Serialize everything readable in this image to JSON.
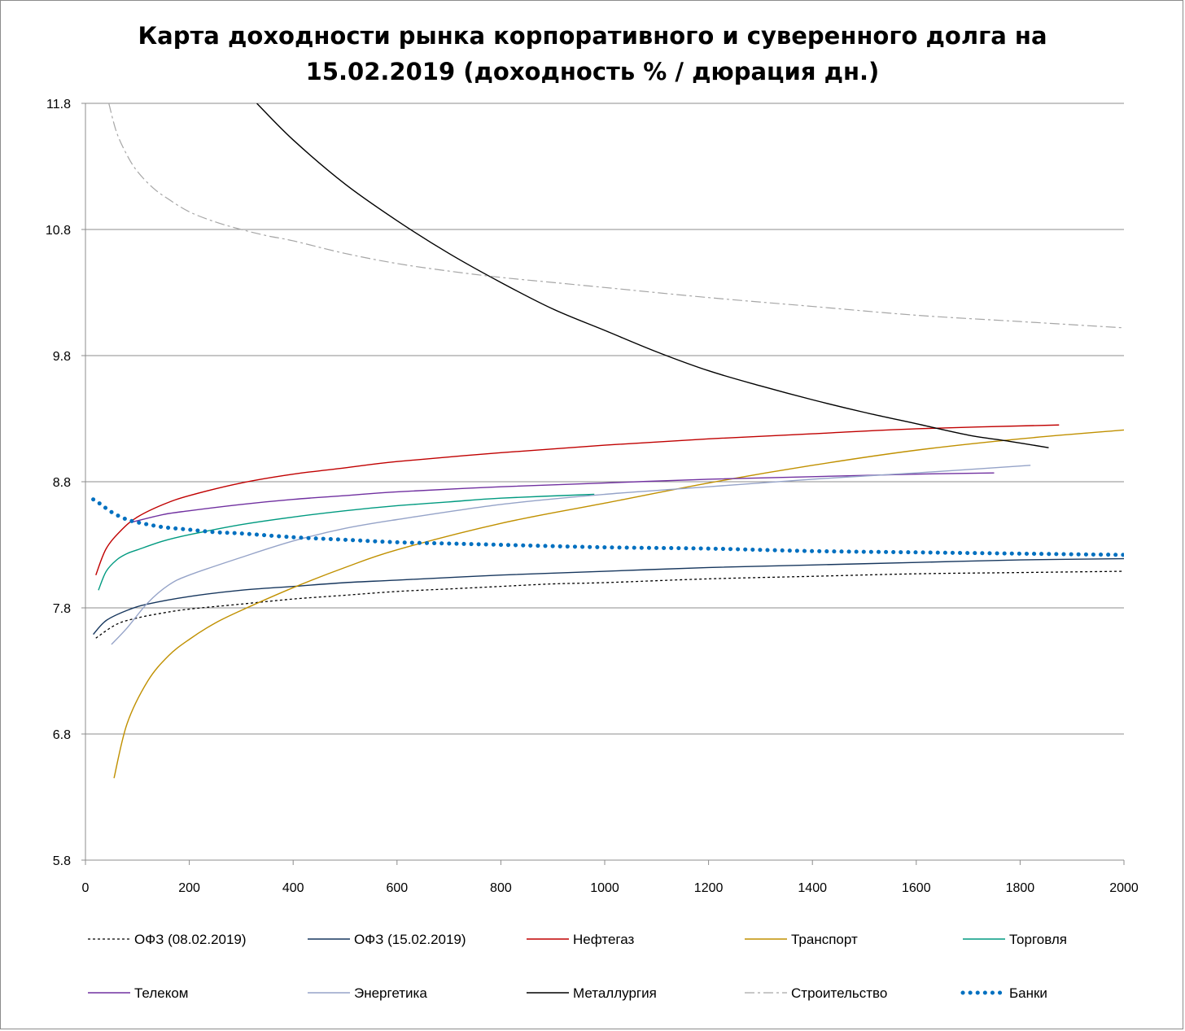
{
  "chart_data": {
    "type": "line",
    "title": "Карта доходности рынка корпоративного и суверенного долга на\n15.02.2019 (доходность % / дюрация дн.)",
    "xlabel": "",
    "ylabel": "",
    "xlim": [
      0,
      2000
    ],
    "ylim": [
      5.8,
      11.8
    ],
    "xticks": [
      "0",
      "200",
      "400",
      "600",
      "800",
      "1000",
      "1200",
      "1400",
      "1600",
      "1800",
      "2000"
    ],
    "yticks": [
      "11.8",
      "10.8",
      "9.8",
      "8.8",
      "7.8",
      "6.8",
      "5.8"
    ],
    "grid": "horizontal",
    "legend_position": "bottom",
    "series": [
      {
        "name": "ОФЗ (08.02.2019)",
        "color": "#000000",
        "style": "dash-fine",
        "x": [
          20,
          60,
          100,
          150,
          200,
          300,
          400,
          500,
          600,
          700,
          800,
          900,
          1000,
          1200,
          1400,
          1600,
          1800,
          2000
        ],
        "y": [
          7.56,
          7.67,
          7.72,
          7.76,
          7.79,
          7.83,
          7.87,
          7.9,
          7.93,
          7.95,
          7.97,
          7.99,
          8.0,
          8.03,
          8.05,
          8.07,
          8.08,
          8.09
        ]
      },
      {
        "name": "ОФЗ (15.02.2019)",
        "color": "#17375e",
        "style": "solid",
        "x": [
          15,
          40,
          80,
          120,
          200,
          300,
          400,
          500,
          600,
          800,
          1000,
          1200,
          1400,
          1600,
          1800,
          2000
        ],
        "y": [
          7.59,
          7.7,
          7.78,
          7.83,
          7.89,
          7.94,
          7.97,
          8.0,
          8.02,
          8.06,
          8.09,
          8.12,
          8.14,
          8.16,
          8.18,
          8.19
        ]
      },
      {
        "name": "Нефтегаз",
        "color": "#c00000",
        "style": "solid",
        "x": [
          20,
          40,
          70,
          100,
          150,
          200,
          300,
          400,
          500,
          600,
          800,
          1000,
          1200,
          1400,
          1600,
          1875
        ],
        "y": [
          8.06,
          8.27,
          8.42,
          8.52,
          8.62,
          8.69,
          8.79,
          8.86,
          8.91,
          8.96,
          9.03,
          9.09,
          9.14,
          9.18,
          9.22,
          9.25
        ]
      },
      {
        "name": "Транспорт",
        "color": "#c09000",
        "style": "solid",
        "x": [
          55,
          80,
          120,
          160,
          200,
          250,
          300,
          400,
          500,
          600,
          800,
          1000,
          1200,
          1400,
          1600,
          1800,
          2000
        ],
        "y": [
          6.45,
          6.88,
          7.22,
          7.42,
          7.55,
          7.68,
          7.78,
          7.96,
          8.12,
          8.26,
          8.47,
          8.63,
          8.79,
          8.93,
          9.05,
          9.14,
          9.21
        ]
      },
      {
        "name": "Торговля",
        "color": "#009a80",
        "style": "solid",
        "x": [
          25,
          40,
          60,
          80,
          100,
          150,
          200,
          300,
          400,
          500,
          600,
          700,
          800,
          980
        ],
        "y": [
          7.94,
          8.09,
          8.18,
          8.23,
          8.26,
          8.33,
          8.38,
          8.46,
          8.52,
          8.57,
          8.61,
          8.64,
          8.67,
          8.7
        ]
      },
      {
        "name": "Телеком",
        "color": "#7030a0",
        "style": "solid",
        "x": [
          90,
          150,
          200,
          300,
          400,
          500,
          600,
          800,
          1000,
          1200,
          1400,
          1600,
          1750
        ],
        "y": [
          8.48,
          8.54,
          8.57,
          8.62,
          8.66,
          8.69,
          8.72,
          8.76,
          8.79,
          8.82,
          8.84,
          8.86,
          8.87
        ]
      },
      {
        "name": "Энергетика",
        "color": "#95a3c8",
        "style": "solid",
        "x": [
          50,
          80,
          120,
          160,
          200,
          300,
          400,
          500,
          600,
          800,
          1000,
          1200,
          1400,
          1600,
          1820
        ],
        "y": [
          7.51,
          7.64,
          7.84,
          7.98,
          8.06,
          8.2,
          8.33,
          8.43,
          8.5,
          8.62,
          8.7,
          8.76,
          8.82,
          8.87,
          8.93
        ]
      },
      {
        "name": "Металлургия",
        "color": "#000000",
        "style": "solid",
        "x": [
          330,
          400,
          500,
          600,
          700,
          800,
          900,
          1000,
          1100,
          1200,
          1300,
          1400,
          1500,
          1600,
          1700,
          1780,
          1855
        ],
        "y": [
          11.8,
          11.51,
          11.16,
          10.87,
          10.61,
          10.38,
          10.17,
          10.0,
          9.83,
          9.68,
          9.56,
          9.45,
          9.35,
          9.26,
          9.17,
          9.12,
          9.07
        ]
      },
      {
        "name": "Строительство",
        "color": "#a6a6a6",
        "style": "dash-dot",
        "x": [
          45,
          60,
          80,
          100,
          130,
          160,
          200,
          250,
          300,
          350,
          400,
          500,
          600,
          700,
          800,
          900,
          1000,
          1200,
          1400,
          1600,
          1800,
          2000
        ],
        "y": [
          11.8,
          11.57,
          11.39,
          11.26,
          11.13,
          11.04,
          10.94,
          10.86,
          10.8,
          10.75,
          10.71,
          10.61,
          10.53,
          10.47,
          10.42,
          10.38,
          10.34,
          10.26,
          10.19,
          10.12,
          10.07,
          10.02
        ]
      },
      {
        "name": "Банки",
        "color": "#0070c0",
        "style": "dots",
        "x": [
          15,
          30,
          50,
          80,
          110,
          150,
          200,
          250,
          300,
          400,
          500,
          600,
          700,
          800,
          1000,
          1200,
          1400,
          1600,
          1800,
          2000
        ],
        "y": [
          8.66,
          8.62,
          8.56,
          8.5,
          8.47,
          8.44,
          8.42,
          8.4,
          8.39,
          8.36,
          8.34,
          8.32,
          8.31,
          8.3,
          8.28,
          8.27,
          8.25,
          8.24,
          8.23,
          8.22
        ]
      }
    ]
  }
}
